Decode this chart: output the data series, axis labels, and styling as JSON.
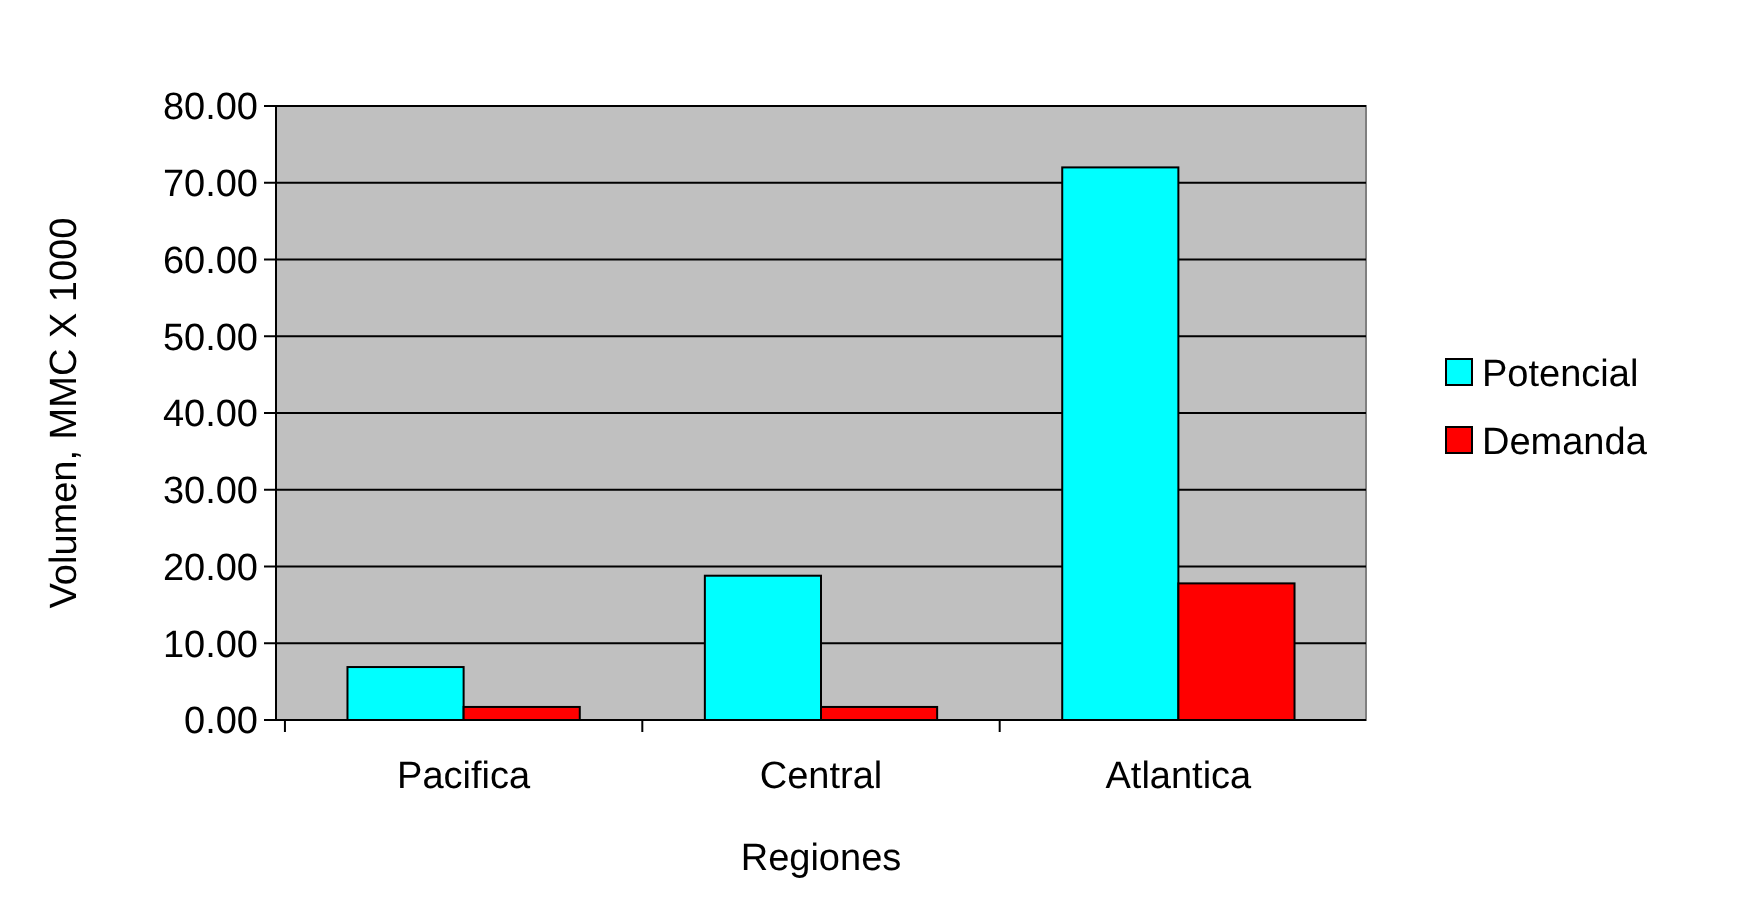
{
  "chart_data": {
    "type": "bar",
    "xlabel": "Regiones",
    "ylabel": "Volumen, MMC X 1000",
    "categories": [
      "Pacifica",
      "Central",
      "Atlantica"
    ],
    "series": [
      {
        "name": "Potencial",
        "color": "#00ffff",
        "values": [
          6.9,
          18.8,
          72
        ]
      },
      {
        "name": "Demanda",
        "color": "#ff0000",
        "values": [
          1.7,
          1.7,
          17.8
        ]
      }
    ],
    "ylim": [
      0,
      80
    ],
    "yticks": [
      {
        "value": 0,
        "label": "0.00"
      },
      {
        "value": 10,
        "label": "10.00"
      },
      {
        "value": 20,
        "label": "20.00"
      },
      {
        "value": 30,
        "label": "30.00"
      },
      {
        "value": 40,
        "label": "40.00"
      },
      {
        "value": 50,
        "label": "50.00"
      },
      {
        "value": 60,
        "label": "60.00"
      },
      {
        "value": 70,
        "label": "70.00"
      },
      {
        "value": 80,
        "label": "80.00"
      }
    ],
    "grid": "y",
    "legend": "right"
  }
}
